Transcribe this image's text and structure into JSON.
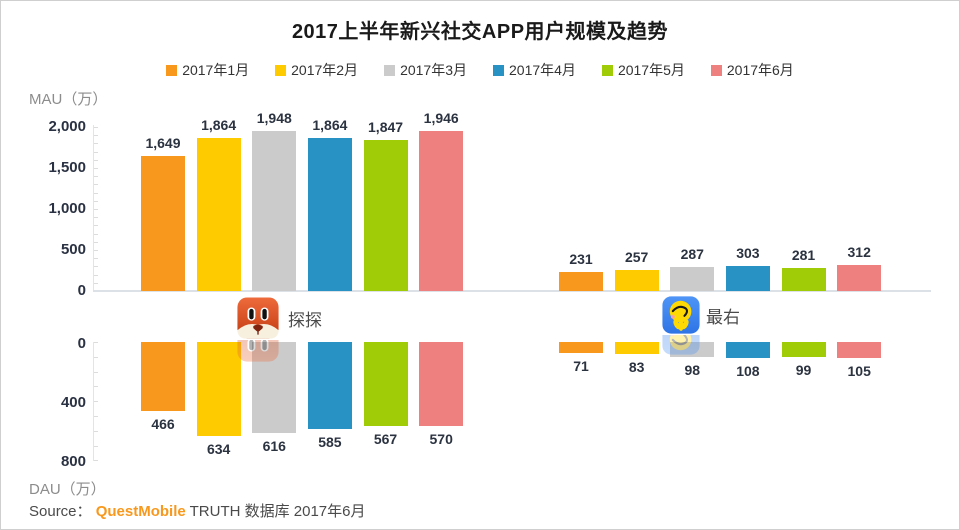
{
  "header": {
    "title": "2017上半年新兴社交APP用户规模及趋势"
  },
  "legend": {
    "items": [
      {
        "label": "2017年1月",
        "color": "#F8991D"
      },
      {
        "label": "2017年2月",
        "color": "#FECB00"
      },
      {
        "label": "2017年3月",
        "color": "#CBCBCB"
      },
      {
        "label": "2017年4月",
        "color": "#2792C3"
      },
      {
        "label": "2017年5月",
        "color": "#9FCB07"
      },
      {
        "label": "2017年6月",
        "color": "#EF8080"
      }
    ]
  },
  "apps": [
    {
      "name": "探探",
      "icon": "tantan-fox-app-icon"
    },
    {
      "name": "最右",
      "icon": "zuiyou-app-icon"
    }
  ],
  "source": {
    "prefix": "Source：",
    "brand": "QuestMobile",
    "suffix": " TRUTH 数据库 2017年6月",
    "brand_color": "#F8981D"
  },
  "chart_data": {
    "type": "bar",
    "title": "2017上半年新兴社交APP用户规模及趋势",
    "categories": [
      "2017年1月",
      "2017年2月",
      "2017年3月",
      "2017年4月",
      "2017年5月",
      "2017年6月"
    ],
    "palette": [
      "#F8991D",
      "#FECB00",
      "#CBCBCB",
      "#2792C3",
      "#9FCB07",
      "#EF8080"
    ],
    "legend_position": "top",
    "grid": false,
    "panels": [
      {
        "metric": "MAU",
        "axis_label": "MAU（万）",
        "ylim": [
          0,
          2000
        ],
        "ticks": [
          "2,000",
          "1,500",
          "1,000",
          "500",
          "0"
        ],
        "direction": "up",
        "groups": [
          {
            "app": "探探",
            "values": [
              1649,
              1864,
              1948,
              1864,
              1847,
              1946
            ]
          },
          {
            "app": "最右",
            "values": [
              231,
              257,
              287,
              303,
              281,
              312
            ]
          }
        ]
      },
      {
        "metric": "DAU",
        "axis_label": "DAU（万）",
        "ylim": [
          0,
          800
        ],
        "ticks": [
          "0",
          "400",
          "800"
        ],
        "direction": "down",
        "groups": [
          {
            "app": "探探",
            "values": [
              466,
              634,
              616,
              585,
              567,
              570
            ]
          },
          {
            "app": "最右",
            "values": [
              71,
              83,
              98,
              108,
              99,
              105
            ]
          }
        ]
      }
    ]
  }
}
